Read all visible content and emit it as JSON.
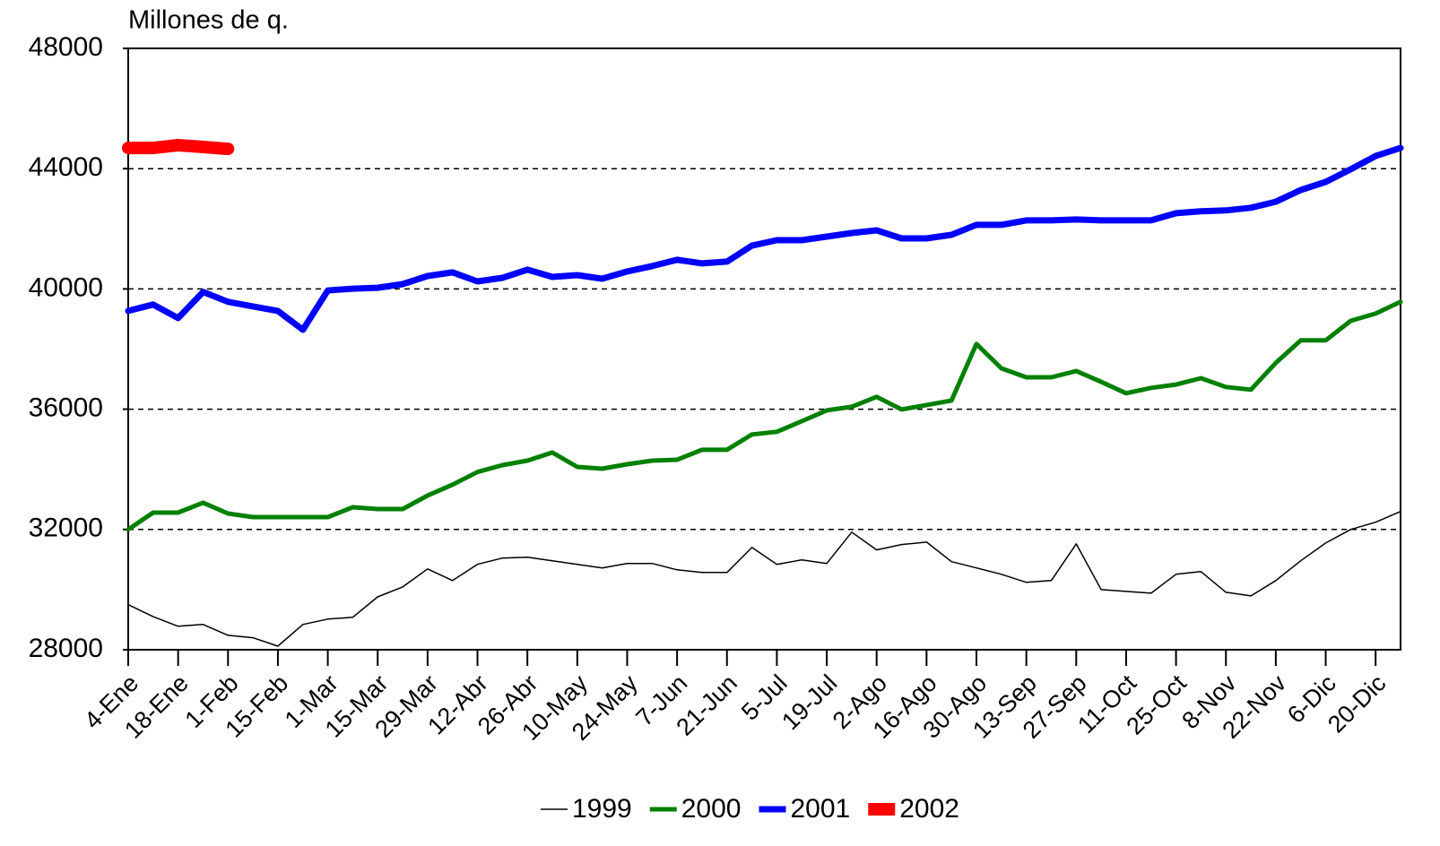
{
  "chart_data": {
    "type": "line",
    "title": "Millones de q.",
    "categories": [
      "4-Ene",
      null,
      "18-Ene",
      null,
      "1-Feb",
      null,
      "15-Feb",
      null,
      "1-Mar",
      null,
      "15-Mar",
      null,
      "29-Mar",
      null,
      "12-Abr",
      null,
      "26-Abr",
      null,
      "10-May",
      null,
      "24-May",
      null,
      "7-Jun",
      null,
      "21-Jun",
      null,
      "5-Jul",
      null,
      "19-Jul",
      null,
      "2-Ago",
      null,
      "16-Ago",
      null,
      "30-Ago",
      null,
      "13-Sep",
      null,
      "27-Sep",
      null,
      "11-Oct",
      null,
      "25-Oct",
      null,
      "8-Nov",
      null,
      "22-Nov",
      null,
      "6-Dic",
      null,
      "20-Dic",
      null
    ],
    "series": [
      {
        "name": "1999",
        "color": "#000000",
        "values": [
          29500,
          29100,
          28780,
          28840,
          28480,
          28400,
          28120,
          28840,
          29020,
          29080,
          29760,
          30090,
          30690,
          30300,
          30840,
          31050,
          31080,
          30960,
          30840,
          30720,
          30870,
          30870,
          30660,
          30570,
          30570,
          31400,
          30840,
          30990,
          30870,
          31910,
          31320,
          31500,
          31580,
          30930,
          30720,
          30510,
          30240,
          30300,
          31520,
          30000,
          29940,
          29880,
          30510,
          30600,
          29910,
          29790,
          30300,
          30960,
          31550,
          32000,
          32240,
          32600
        ]
      },
      {
        "name": "2000",
        "color": "#008000",
        "values": [
          32000,
          32560,
          32560,
          32890,
          32530,
          32410,
          32410,
          32410,
          32410,
          32740,
          32680,
          32680,
          33130,
          33490,
          33910,
          34140,
          34290,
          34560,
          34080,
          34020,
          34170,
          34290,
          34320,
          34650,
          34650,
          35160,
          35250,
          35600,
          35960,
          36080,
          36410,
          35990,
          36140,
          36290,
          38170,
          37360,
          37060,
          37060,
          37270,
          36910,
          36530,
          36710,
          36820,
          37030,
          36740,
          36650,
          37540,
          38290,
          38290,
          38940,
          39180,
          39570
        ]
      },
      {
        "name": "2001",
        "color": "#0000ff",
        "values": [
          39270,
          39480,
          39030,
          39900,
          39570,
          39420,
          39270,
          38640,
          39950,
          40010,
          40040,
          40160,
          40430,
          40550,
          40250,
          40370,
          40640,
          40400,
          40460,
          40340,
          40580,
          40760,
          40970,
          40850,
          40910,
          41440,
          41620,
          41620,
          41740,
          41860,
          41950,
          41680,
          41680,
          41800,
          42130,
          42130,
          42280,
          42280,
          42310,
          42280,
          42280,
          42280,
          42520,
          42580,
          42610,
          42700,
          42900,
          43290,
          43560,
          43980,
          44420,
          44690
        ]
      },
      {
        "name": "2002",
        "color": "#ff0000",
        "values": [
          44690,
          44690,
          44780,
          44720,
          44660,
          null,
          null,
          null,
          null,
          null,
          null,
          null,
          null,
          null,
          null,
          null,
          null,
          null,
          null,
          null,
          null,
          null,
          null,
          null,
          null,
          null,
          null,
          null,
          null,
          null,
          null,
          null,
          null,
          null,
          null,
          null,
          null,
          null,
          null,
          null,
          null,
          null,
          null,
          null,
          null,
          null,
          null,
          null,
          null,
          null,
          null,
          null
        ]
      }
    ],
    "ylim": [
      28000,
      48000
    ],
    "yticks": [
      28000,
      32000,
      36000,
      40000,
      44000,
      48000
    ],
    "grid": true
  }
}
